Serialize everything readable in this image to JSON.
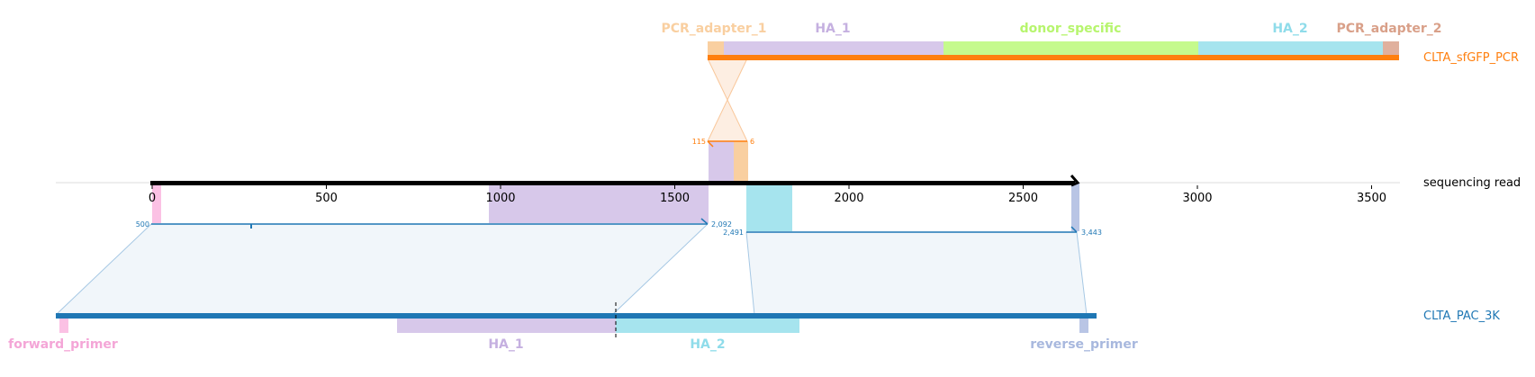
{
  "reference": {
    "name": "sequencing read",
    "color": "#000000",
    "axis": {
      "min": 0,
      "max": 2658,
      "ticks": [
        0,
        500,
        1000,
        1500,
        2000,
        2500,
        3000,
        3500
      ],
      "tick_labels": [
        "0",
        "500",
        "1000",
        "1500",
        "2000",
        "2500",
        "3000",
        "3500"
      ]
    },
    "features": [
      {
        "name": "forward_primer",
        "start": 0,
        "end": 25,
        "color": "#f4a6d7"
      },
      {
        "name": "HA_1",
        "start": 963,
        "end": 1590,
        "color": "#c5b0e0"
      },
      {
        "name": "HA_2",
        "start": 1695,
        "end": 1830,
        "color": "#8fdcea"
      },
      {
        "name": "reverse_primer",
        "start": 2638,
        "end": 2658,
        "color": "#a8b8de"
      }
    ]
  },
  "top_target": {
    "name": "CLTA_sfGFP_PCR",
    "color": "#ff7f0e",
    "features": [
      {
        "name": "PCR_adapter_1",
        "color": "#f9cfa0"
      },
      {
        "name": "HA_1",
        "color": "#c5b0e0"
      },
      {
        "name": "donor_specific",
        "color": "#b7f56e"
      },
      {
        "name": "HA_2",
        "color": "#8fdcea"
      },
      {
        "name": "PCR_adapter_2",
        "color": "#d9a089"
      }
    ],
    "alignment": {
      "left_label": "115",
      "right_label": "6"
    }
  },
  "bottom_target": {
    "name": "CLTA_PAC_3K",
    "color": "#1f77b4",
    "features": [
      {
        "name": "forward_primer",
        "color": "#f4a6d7"
      },
      {
        "name": "HA_1",
        "color": "#c5b0e0"
      },
      {
        "name": "HA_2",
        "color": "#8fdcea"
      },
      {
        "name": "reverse_primer",
        "color": "#a8b8de"
      }
    ],
    "alignments": [
      {
        "start_label": "500",
        "end_label": "2,092"
      },
      {
        "start_label": "2,491",
        "end_label": "3,443"
      }
    ]
  }
}
